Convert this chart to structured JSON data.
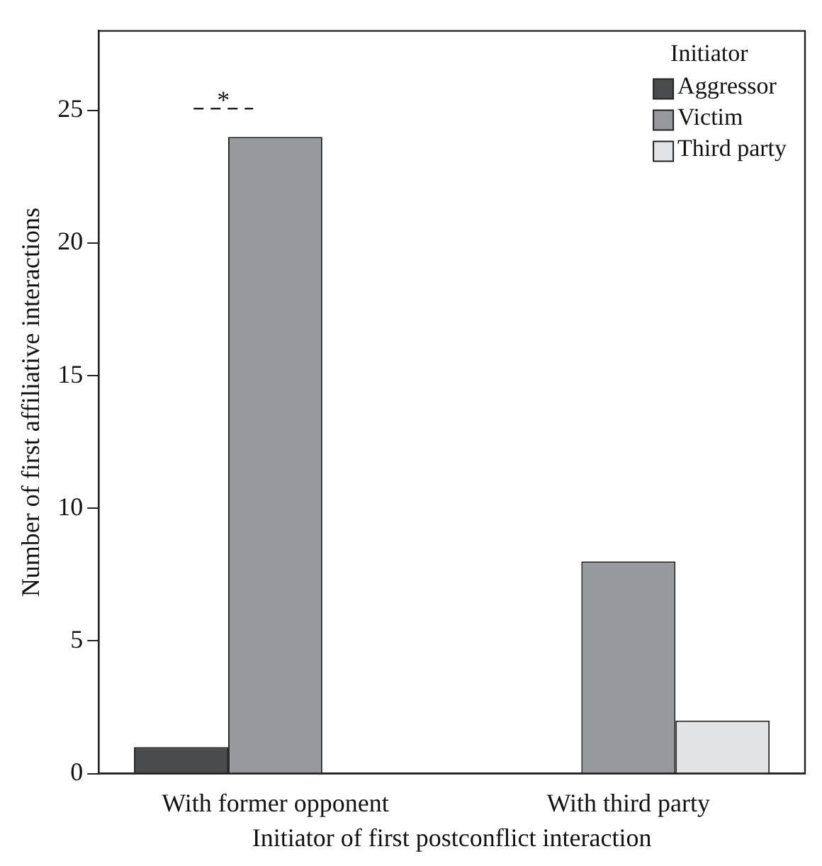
{
  "chart_data": {
    "type": "bar",
    "xlabel": "Initiator of first postconflict interaction",
    "ylabel": "Number of first affiliative interactions",
    "legend_title": "Initiator",
    "categories": [
      "With former opponent",
      "With third party"
    ],
    "series": [
      {
        "name": "Aggressor",
        "color": "#4a4b4d",
        "values": [
          1,
          0
        ]
      },
      {
        "name": "Victim",
        "color": "#98999d",
        "values": [
          24,
          8
        ]
      },
      {
        "name": "Third party",
        "color": "#e2e3e5",
        "values": [
          0,
          2
        ]
      }
    ],
    "ylim": [
      0,
      28
    ],
    "yticks": [
      0,
      5,
      10,
      15,
      20,
      25
    ],
    "grid": false,
    "legend": "top right",
    "annotations": [
      "*"
    ]
  }
}
